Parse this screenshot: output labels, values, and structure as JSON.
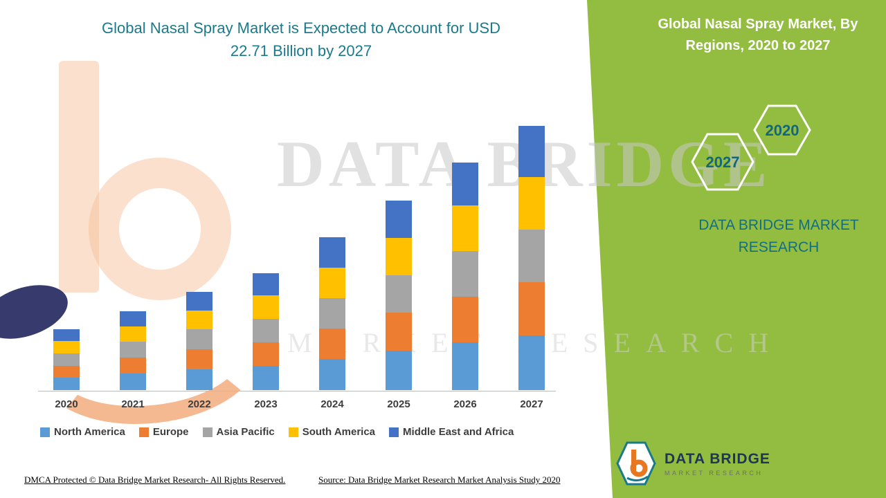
{
  "accent_colors": {
    "title_teal": "#1a7a8c",
    "panel_green": "#93bd40",
    "hex_label_teal": "#14667a",
    "logo_orange": "#e87722",
    "logo_navy": "#1f3555"
  },
  "header": {
    "title_line1": "Global Nasal Spray Market is Expected to Account for USD",
    "title_line2": "22.71 Billion by 2027"
  },
  "side_panel": {
    "title": "Global Nasal Spray Market, By Regions, 2020 to 2027",
    "hexagon_back_label": "2020",
    "hexagon_front_label": "2027",
    "brand_line1": "DATA BRIDGE MARKET",
    "brand_line2": "RESEARCH"
  },
  "watermark": {
    "line1": "DATA BRIDGE",
    "line2": "MARKET RESEARCH"
  },
  "footer": {
    "dmca": "DMCA Protected © Data Bridge Market Research- All Rights Reserved.",
    "source": "Source: Data Bridge Market Research Market Analysis Study 2020"
  },
  "logo": {
    "name": "DATA BRIDGE",
    "subtitle": "MARKET RESEARCH"
  },
  "chart_data": {
    "type": "bar",
    "stacked": true,
    "title": "Global Nasal Spray Market is Expected to Account for USD 22.71 Billion by 2027",
    "categories": [
      "2020",
      "2021",
      "2022",
      "2023",
      "2024",
      "2025",
      "2026",
      "2027"
    ],
    "series": [
      {
        "name": "North America",
        "color": "#5b9bd5",
        "values": [
          1.1,
          1.4,
          1.8,
          2.1,
          2.7,
          3.4,
          4.1,
          4.7
        ]
      },
      {
        "name": "Europe",
        "color": "#ed7d31",
        "values": [
          1.0,
          1.35,
          1.7,
          2.0,
          2.6,
          3.3,
          3.9,
          4.6
        ]
      },
      {
        "name": "Asia Pacific",
        "color": "#a5a5a5",
        "values": [
          1.05,
          1.35,
          1.7,
          2.0,
          2.6,
          3.2,
          3.9,
          4.5
        ]
      },
      {
        "name": "South America",
        "color": "#ffc000",
        "values": [
          1.05,
          1.3,
          1.6,
          2.0,
          2.6,
          3.2,
          3.9,
          4.5
        ]
      },
      {
        "name": "Middle East and Africa",
        "color": "#4472c4",
        "values": [
          1.0,
          1.3,
          1.6,
          1.9,
          2.6,
          3.2,
          3.7,
          4.4
        ]
      }
    ],
    "totals": [
      5.2,
      6.7,
      8.4,
      10.0,
      13.1,
      16.3,
      19.5,
      22.71
    ],
    "xlabel": "",
    "ylabel": "",
    "ylim": [
      0,
      24
    ],
    "grid": false,
    "legend_position": "bottom"
  }
}
